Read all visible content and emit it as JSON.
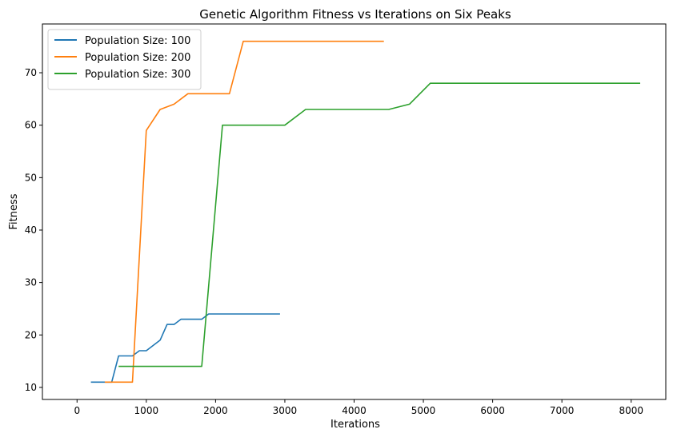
{
  "chart_data": {
    "type": "line",
    "title": "Genetic Algorithm Fitness vs Iterations on Six Peaks",
    "xlabel": "Iterations",
    "ylabel": "Fitness",
    "xlim": [
      -500,
      8500
    ],
    "ylim": [
      7.7,
      79.3
    ],
    "xticks": [
      0,
      1000,
      2000,
      3000,
      4000,
      5000,
      6000,
      7000,
      8000
    ],
    "yticks": [
      10,
      20,
      30,
      40,
      50,
      60,
      70
    ],
    "grid": false,
    "legend_position": "upper-left",
    "series": [
      {
        "name": "Population Size: 100",
        "color": "#1f77b4",
        "points": [
          [
            200,
            11
          ],
          [
            500,
            11
          ],
          [
            600,
            16
          ],
          [
            800,
            16
          ],
          [
            900,
            17
          ],
          [
            1000,
            17
          ],
          [
            1200,
            19
          ],
          [
            1300,
            22
          ],
          [
            1400,
            22
          ],
          [
            1500,
            23
          ],
          [
            1800,
            23
          ],
          [
            1900,
            24
          ],
          [
            2930,
            24
          ]
        ]
      },
      {
        "name": "Population Size: 200",
        "color": "#ff7f0e",
        "points": [
          [
            400,
            11
          ],
          [
            800,
            11
          ],
          [
            1000,
            59
          ],
          [
            1200,
            63
          ],
          [
            1400,
            64
          ],
          [
            1600,
            66
          ],
          [
            2200,
            66
          ],
          [
            2400,
            76
          ],
          [
            4430,
            76
          ]
        ]
      },
      {
        "name": "Population Size: 300",
        "color": "#2ca02c",
        "points": [
          [
            600,
            14
          ],
          [
            1800,
            14
          ],
          [
            2100,
            60
          ],
          [
            3000,
            60
          ],
          [
            3300,
            63
          ],
          [
            4500,
            63
          ],
          [
            4800,
            64
          ],
          [
            5100,
            68
          ],
          [
            8130,
            68
          ]
        ]
      }
    ]
  }
}
